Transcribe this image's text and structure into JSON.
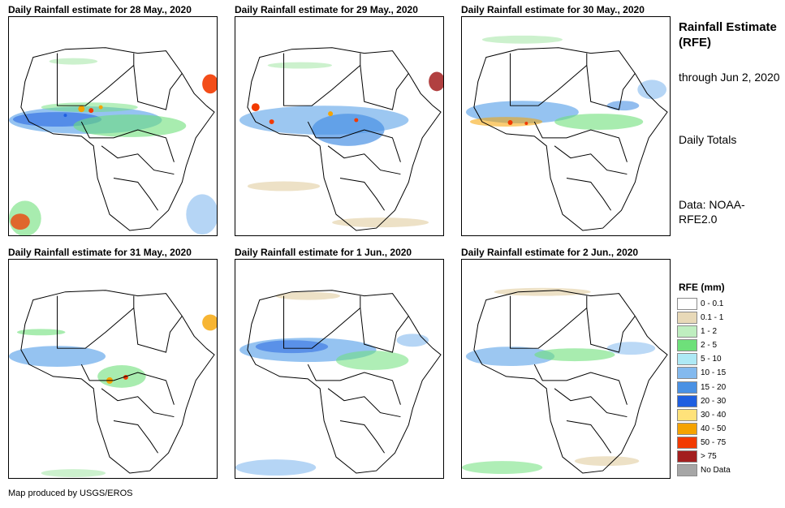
{
  "panels": [
    {
      "title": "Daily Rainfall estimate for 28 May., 2020"
    },
    {
      "title": "Daily Rainfall estimate for 29 May., 2020"
    },
    {
      "title": "Daily Rainfall estimate for 30 May., 2020"
    },
    {
      "title": "Daily Rainfall estimate for 31 May., 2020"
    },
    {
      "title": "Daily Rainfall estimate for 1 Jun., 2020"
    },
    {
      "title": "Daily Rainfall estimate for 2 Jun., 2020"
    }
  ],
  "info": {
    "title": "Rainfall Estimate (RFE)",
    "through": "through Jun 2, 2020",
    "totals": "Daily Totals",
    "data_source": "Data: NOAA-RFE2.0"
  },
  "legend": {
    "title": "RFE (mm)",
    "items": [
      {
        "label": "0 - 0.1",
        "color": "#ffffff"
      },
      {
        "label": "0.1 - 1",
        "color": "#e8d9b8"
      },
      {
        "label": "1 - 2",
        "color": "#bfeec0"
      },
      {
        "label": "2 - 5",
        "color": "#6ee07a"
      },
      {
        "label": "5 - 10",
        "color": "#aee9f5"
      },
      {
        "label": "10 - 15",
        "color": "#83b9ee"
      },
      {
        "label": "15 - 20",
        "color": "#4a91e4"
      },
      {
        "label": "20 - 30",
        "color": "#1f5fe0"
      },
      {
        "label": "30 - 40",
        "color": "#ffe27a"
      },
      {
        "label": "40 - 50",
        "color": "#f5a300"
      },
      {
        "label": "50 - 75",
        "color": "#f23a00"
      },
      {
        "label": "> 75",
        "color": "#a31f1f"
      },
      {
        "label": "No Data",
        "color": "#a6a6a6"
      }
    ]
  },
  "credit": "Map produced by USGS/EROS"
}
